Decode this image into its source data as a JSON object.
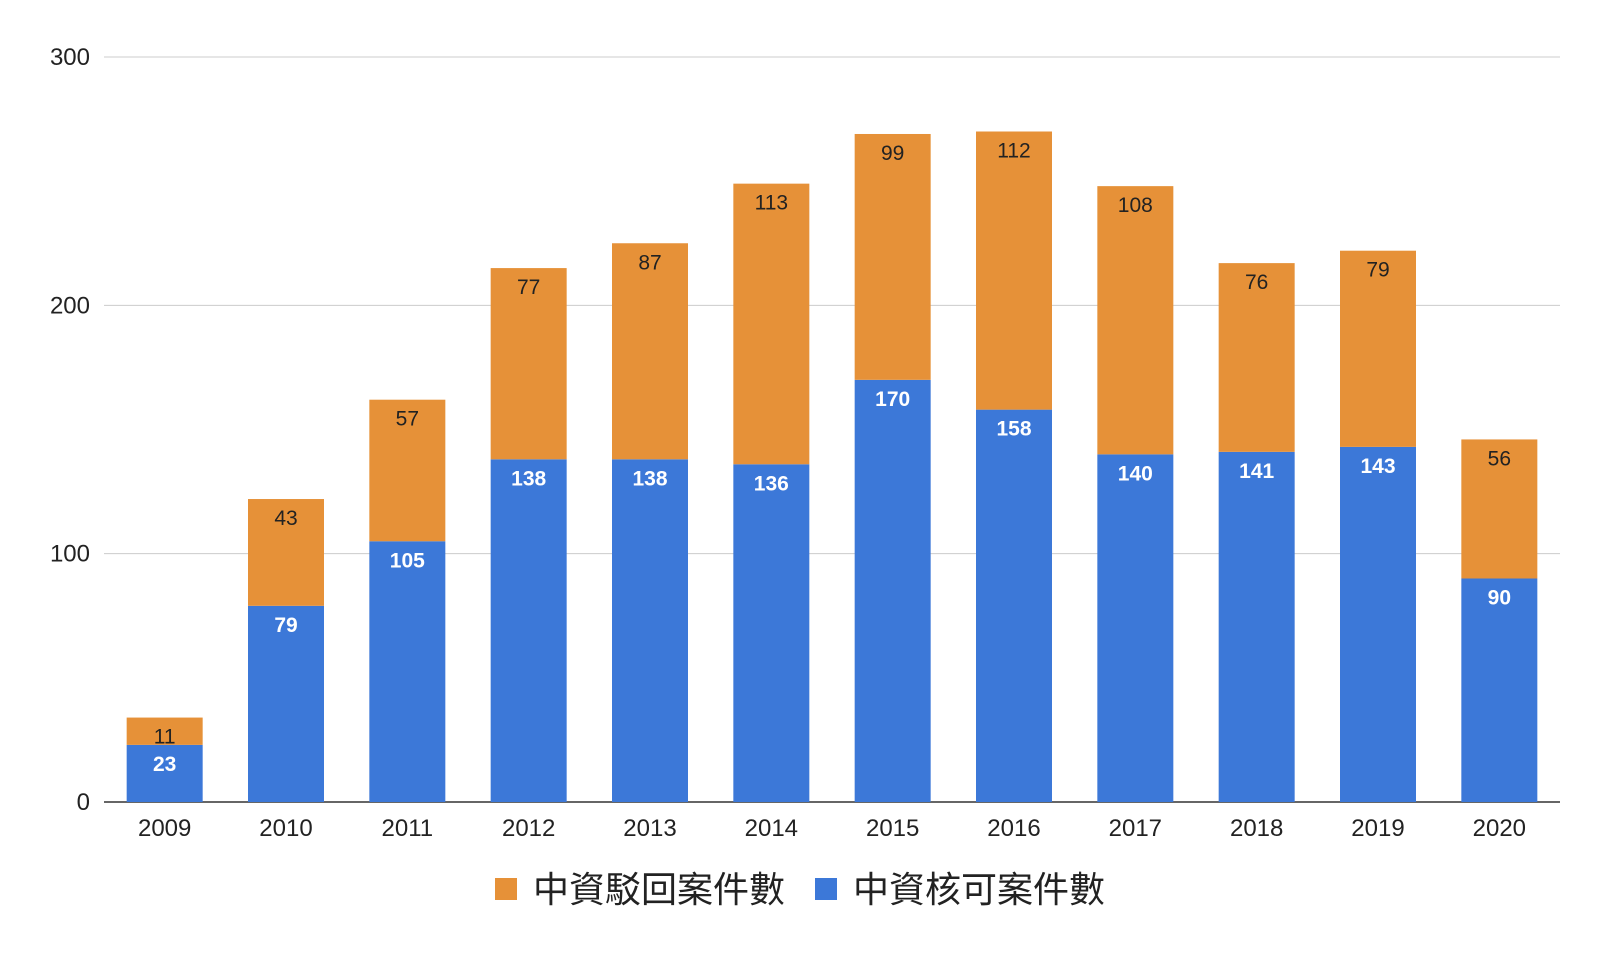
{
  "chart_data": {
    "type": "bar",
    "stacked": true,
    "title": "",
    "xlabel": "",
    "ylabel": "",
    "ylim": [
      0,
      300
    ],
    "yticks": [
      0,
      100,
      200,
      300
    ],
    "grid": true,
    "legend_position": "bottom",
    "categories": [
      "2009",
      "2010",
      "2011",
      "2012",
      "2013",
      "2014",
      "2015",
      "2016",
      "2017",
      "2018",
      "2019",
      "2020"
    ],
    "series": [
      {
        "name": "中資核可案件數",
        "color": "#3c78d8",
        "values": [
          23,
          79,
          105,
          138,
          138,
          136,
          170,
          158,
          140,
          141,
          143,
          90
        ]
      },
      {
        "name": "中資駁回案件數",
        "color": "#e69138",
        "values": [
          11,
          43,
          57,
          77,
          87,
          113,
          99,
          112,
          108,
          76,
          79,
          56
        ]
      }
    ],
    "legend_order": [
      "中資駁回案件數",
      "中資核可案件數"
    ]
  }
}
